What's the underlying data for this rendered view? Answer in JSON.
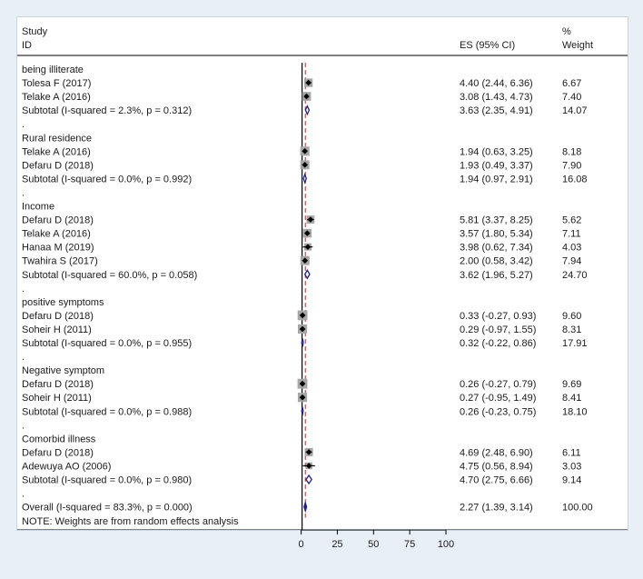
{
  "chart_data": {
    "type": "forest",
    "header": {
      "study_line1": "Study",
      "study_line2": "ID",
      "es_label": "ES (95% CI)",
      "weight_line1": "%",
      "weight_line2": "Weight"
    },
    "rows": [
      {
        "kind": "group",
        "label": "being illiterate"
      },
      {
        "kind": "study",
        "label": "Tolesa F (2017)",
        "es": 4.4,
        "lo": 2.44,
        "hi": 6.36,
        "ci_text": "4.40 (2.44, 6.36)",
        "weight": 6.67,
        "weight_text": "6.67"
      },
      {
        "kind": "study",
        "label": "Telake A (2016)",
        "es": 3.08,
        "lo": 1.43,
        "hi": 4.73,
        "ci_text": "3.08 (1.43, 4.73)",
        "weight": 7.4,
        "weight_text": "7.40"
      },
      {
        "kind": "subtotal",
        "label": "Subtotal  (I-squared = 2.3%, p = 0.312)",
        "es": 3.63,
        "lo": 2.35,
        "hi": 4.91,
        "ci_text": "3.63 (2.35, 4.91)",
        "weight": 14.07,
        "weight_text": "14.07"
      },
      {
        "kind": "dot",
        "label": "."
      },
      {
        "kind": "group",
        "label": "Rural residence"
      },
      {
        "kind": "study",
        "label": "Telake A (2016)",
        "es": 1.94,
        "lo": 0.63,
        "hi": 3.25,
        "ci_text": "1.94 (0.63, 3.25)",
        "weight": 8.18,
        "weight_text": "8.18"
      },
      {
        "kind": "study",
        "label": "Defaru D (2018)",
        "es": 1.93,
        "lo": 0.49,
        "hi": 3.37,
        "ci_text": "1.93 (0.49, 3.37)",
        "weight": 7.9,
        "weight_text": "7.90"
      },
      {
        "kind": "subtotal",
        "label": "Subtotal  (I-squared = 0.0%, p = 0.992)",
        "es": 1.94,
        "lo": 0.97,
        "hi": 2.91,
        "ci_text": "1.94 (0.97, 2.91)",
        "weight": 16.08,
        "weight_text": "16.08"
      },
      {
        "kind": "dot",
        "label": "."
      },
      {
        "kind": "group",
        "label": "Income"
      },
      {
        "kind": "study",
        "label": "Defaru D (2018)",
        "es": 5.81,
        "lo": 3.37,
        "hi": 8.25,
        "ci_text": "5.81 (3.37, 8.25)",
        "weight": 5.62,
        "weight_text": "5.62"
      },
      {
        "kind": "study",
        "label": "Telake A (2016)",
        "es": 3.57,
        "lo": 1.8,
        "hi": 5.34,
        "ci_text": "3.57 (1.80, 5.34)",
        "weight": 7.11,
        "weight_text": "7.11"
      },
      {
        "kind": "study",
        "label": "Hanaa M (2019)",
        "es": 3.98,
        "lo": 0.62,
        "hi": 7.34,
        "ci_text": "3.98 (0.62, 7.34)",
        "weight": 4.03,
        "weight_text": "4.03"
      },
      {
        "kind": "study",
        "label": "Twahira S (2017)",
        "es": 2.0,
        "lo": 0.58,
        "hi": 3.42,
        "ci_text": "2.00 (0.58, 3.42)",
        "weight": 7.94,
        "weight_text": "7.94"
      },
      {
        "kind": "subtotal",
        "label": "Subtotal  (I-squared = 60.0%, p = 0.058)",
        "es": 3.62,
        "lo": 1.96,
        "hi": 5.27,
        "ci_text": "3.62 (1.96, 5.27)",
        "weight": 24.7,
        "weight_text": "24.70"
      },
      {
        "kind": "dot",
        "label": "."
      },
      {
        "kind": "group",
        "label": "positive symptoms"
      },
      {
        "kind": "study",
        "label": "Defaru D (2018)",
        "es": 0.33,
        "lo": -0.27,
        "hi": 0.93,
        "ci_text": "0.33 (-0.27, 0.93)",
        "weight": 9.6,
        "weight_text": "9.60"
      },
      {
        "kind": "study",
        "label": "Soheir H (2011)",
        "es": 0.29,
        "lo": -0.97,
        "hi": 1.55,
        "ci_text": "0.29 (-0.97, 1.55)",
        "weight": 8.31,
        "weight_text": "8.31"
      },
      {
        "kind": "subtotal",
        "label": "Subtotal  (I-squared = 0.0%, p = 0.955)",
        "es": 0.32,
        "lo": -0.22,
        "hi": 0.86,
        "ci_text": "0.32 (-0.22, 0.86)",
        "weight": 17.91,
        "weight_text": "17.91"
      },
      {
        "kind": "dot",
        "label": "."
      },
      {
        "kind": "group",
        "label": "Negative symptom"
      },
      {
        "kind": "study",
        "label": "Defaru D (2018)",
        "es": 0.26,
        "lo": -0.27,
        "hi": 0.79,
        "ci_text": "0.26 (-0.27, 0.79)",
        "weight": 9.69,
        "weight_text": "9.69"
      },
      {
        "kind": "study",
        "label": "Soheir H (2011)",
        "es": 0.27,
        "lo": -0.95,
        "hi": 1.49,
        "ci_text": "0.27 (-0.95, 1.49)",
        "weight": 8.41,
        "weight_text": "8.41"
      },
      {
        "kind": "subtotal",
        "label": "Subtotal  (I-squared = 0.0%, p = 0.988)",
        "es": 0.26,
        "lo": -0.23,
        "hi": 0.75,
        "ci_text": "0.26 (-0.23, 0.75)",
        "weight": 18.1,
        "weight_text": "18.10"
      },
      {
        "kind": "dot",
        "label": "."
      },
      {
        "kind": "group",
        "label": "Comorbid illness"
      },
      {
        "kind": "study",
        "label": "Defaru D (2018)",
        "es": 4.69,
        "lo": 2.48,
        "hi": 6.9,
        "ci_text": "4.69 (2.48, 6.90)",
        "weight": 6.11,
        "weight_text": "6.11"
      },
      {
        "kind": "study",
        "label": "Adewuya AO (2006)",
        "es": 4.75,
        "lo": 0.56,
        "hi": 8.94,
        "ci_text": "4.75 (0.56, 8.94)",
        "weight": 3.03,
        "weight_text": "3.03"
      },
      {
        "kind": "subtotal",
        "label": "Subtotal  (I-squared = 0.0%, p = 0.980)",
        "es": 4.7,
        "lo": 2.75,
        "hi": 6.66,
        "ci_text": "4.70 (2.75, 6.66)",
        "weight": 9.14,
        "weight_text": "9.14"
      },
      {
        "kind": "dot",
        "label": "."
      },
      {
        "kind": "overall",
        "label": "Overall  (I-squared = 83.3%, p = 0.000)",
        "es": 2.27,
        "lo": 1.39,
        "hi": 3.14,
        "ci_text": "2.27 (1.39, 3.14)",
        "weight": 100.0,
        "weight_text": "100.00"
      }
    ],
    "note": "NOTE: Weights are from random effects analysis",
    "x_ticks": [
      0,
      25,
      50,
      75,
      100
    ],
    "x_tick_labels": [
      "0",
      "25",
      "50",
      "75",
      "100"
    ],
    "xlim": [
      -1,
      100
    ],
    "null_line": 0,
    "overall_line": 2.27,
    "colors": {
      "study_box": "#a6a6a6",
      "point": "#000000",
      "diamond": "#1f1f8f",
      "overall_line": "#b03030",
      "axis": "#000000"
    }
  }
}
